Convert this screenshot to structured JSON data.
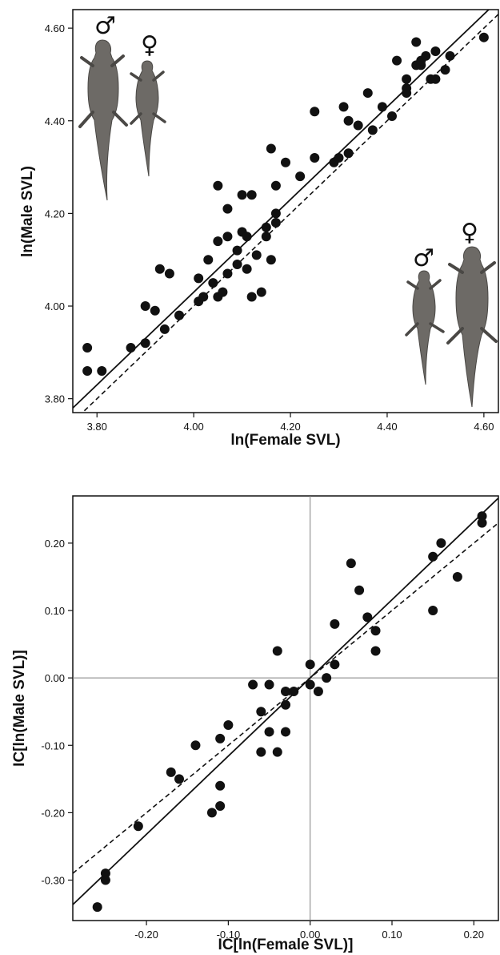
{
  "colors": {
    "ink": "#111111",
    "lizard": "#6d6a66",
    "lizard_dark": "#4a4845",
    "refline": "#7f7f7f"
  },
  "icons": {
    "male": "♂",
    "female": "♀"
  },
  "chart_data": [
    {
      "type": "scatter",
      "xlabel": "ln(Female SVL)",
      "ylabel": "ln(Male SVL)",
      "xlim": [
        3.75,
        4.63
      ],
      "ylim": [
        3.77,
        4.64
      ],
      "xticks": [
        3.8,
        4.0,
        4.2,
        4.4,
        4.6
      ],
      "yticks": [
        3.8,
        4.0,
        4.2,
        4.4,
        4.6
      ],
      "tick_labels_x": [
        "3.80",
        "4.00",
        "4.20",
        "4.40",
        "4.60"
      ],
      "tick_labels_y": [
        "3.80",
        "4.00",
        "4.20",
        "4.40",
        "4.60"
      ],
      "grid": false,
      "points": [
        [
          3.78,
          3.91
        ],
        [
          3.78,
          3.86
        ],
        [
          3.81,
          3.86
        ],
        [
          3.87,
          3.91
        ],
        [
          3.9,
          3.92
        ],
        [
          3.9,
          4.0
        ],
        [
          3.92,
          3.99
        ],
        [
          3.93,
          4.08
        ],
        [
          3.94,
          3.95
        ],
        [
          3.95,
          4.07
        ],
        [
          3.97,
          3.98
        ],
        [
          4.01,
          4.06
        ],
        [
          4.01,
          4.01
        ],
        [
          4.02,
          4.02
        ],
        [
          4.03,
          4.1
        ],
        [
          4.04,
          4.05
        ],
        [
          4.05,
          4.02
        ],
        [
          4.05,
          4.14
        ],
        [
          4.05,
          4.26
        ],
        [
          4.06,
          4.03
        ],
        [
          4.07,
          4.21
        ],
        [
          4.07,
          4.07
        ],
        [
          4.07,
          4.15
        ],
        [
          4.09,
          4.12
        ],
        [
          4.09,
          4.09
        ],
        [
          4.1,
          4.16
        ],
        [
          4.1,
          4.24
        ],
        [
          4.11,
          4.15
        ],
        [
          4.11,
          4.08
        ],
        [
          4.12,
          4.24
        ],
        [
          4.12,
          4.02
        ],
        [
          4.13,
          4.11
        ],
        [
          4.14,
          4.03
        ],
        [
          4.15,
          4.17
        ],
        [
          4.15,
          4.15
        ],
        [
          4.16,
          4.1
        ],
        [
          4.16,
          4.34
        ],
        [
          4.17,
          4.18
        ],
        [
          4.17,
          4.2
        ],
        [
          4.17,
          4.26
        ],
        [
          4.19,
          4.31
        ],
        [
          4.22,
          4.28
        ],
        [
          4.25,
          4.32
        ],
        [
          4.25,
          4.42
        ],
        [
          4.29,
          4.31
        ],
        [
          4.3,
          4.32
        ],
        [
          4.31,
          4.43
        ],
        [
          4.32,
          4.4
        ],
        [
          4.32,
          4.33
        ],
        [
          4.34,
          4.39
        ],
        [
          4.36,
          4.46
        ],
        [
          4.37,
          4.38
        ],
        [
          4.39,
          4.43
        ],
        [
          4.41,
          4.41
        ],
        [
          4.42,
          4.53
        ],
        [
          4.44,
          4.46
        ],
        [
          4.44,
          4.47
        ],
        [
          4.44,
          4.49
        ],
        [
          4.46,
          4.52
        ],
        [
          4.46,
          4.57
        ],
        [
          4.47,
          4.52
        ],
        [
          4.47,
          4.53
        ],
        [
          4.48,
          4.54
        ],
        [
          4.49,
          4.49
        ],
        [
          4.5,
          4.49
        ],
        [
          4.5,
          4.55
        ],
        [
          4.52,
          4.51
        ],
        [
          4.53,
          4.54
        ],
        [
          4.6,
          4.58
        ]
      ],
      "solid_line": {
        "slope": 1.0,
        "intercept": 0.03
      },
      "dashed_line": {
        "slope": 1.0,
        "intercept": 0.0
      },
      "annotations": [
        "♂",
        "♀",
        "♂",
        "♀"
      ]
    },
    {
      "type": "scatter",
      "xlabel": "IC[ln(Female SVL)]",
      "ylabel": "IC[ln(Male SVL)]",
      "xlim": [
        -0.29,
        0.23
      ],
      "ylim": [
        -0.36,
        0.27
      ],
      "xticks": [
        -0.2,
        -0.1,
        0.0,
        0.1,
        0.2
      ],
      "yticks": [
        -0.3,
        -0.2,
        -0.1,
        0.0,
        0.1,
        0.2
      ],
      "tick_labels_x": [
        "-0.20",
        "-0.10",
        "0.00",
        "0.10",
        "0.20"
      ],
      "tick_labels_y": [
        "-0.30",
        "-0.20",
        "-0.10",
        "0.00",
        "0.10",
        "0.20"
      ],
      "grid": false,
      "reference_lines": {
        "x": 0.0,
        "y": 0.0
      },
      "points": [
        [
          -0.26,
          -0.34
        ],
        [
          -0.25,
          -0.29
        ],
        [
          -0.25,
          -0.3
        ],
        [
          -0.21,
          -0.22
        ],
        [
          -0.17,
          -0.14
        ],
        [
          -0.16,
          -0.15
        ],
        [
          -0.14,
          -0.1
        ],
        [
          -0.12,
          -0.2
        ],
        [
          -0.11,
          -0.19
        ],
        [
          -0.11,
          -0.16
        ],
        [
          -0.11,
          -0.09
        ],
        [
          -0.1,
          -0.07
        ],
        [
          -0.07,
          -0.01
        ],
        [
          -0.06,
          -0.05
        ],
        [
          -0.06,
          -0.11
        ],
        [
          -0.05,
          -0.01
        ],
        [
          -0.05,
          -0.08
        ],
        [
          -0.04,
          0.04
        ],
        [
          -0.04,
          -0.11
        ],
        [
          -0.03,
          -0.02
        ],
        [
          -0.03,
          -0.04
        ],
        [
          -0.03,
          -0.08
        ],
        [
          -0.02,
          -0.02
        ],
        [
          0.0,
          0.02
        ],
        [
          0.0,
          -0.01
        ],
        [
          0.01,
          -0.02
        ],
        [
          0.02,
          0.0
        ],
        [
          0.03,
          0.02
        ],
        [
          0.03,
          0.08
        ],
        [
          0.05,
          0.17
        ],
        [
          0.06,
          0.13
        ],
        [
          0.07,
          0.09
        ],
        [
          0.08,
          0.07
        ],
        [
          0.08,
          0.04
        ],
        [
          0.15,
          0.18
        ],
        [
          0.15,
          0.1
        ],
        [
          0.16,
          0.2
        ],
        [
          0.18,
          0.15
        ],
        [
          0.21,
          0.24
        ],
        [
          0.21,
          0.23
        ]
      ],
      "solid_line": {
        "slope": 1.16,
        "intercept": 0.0
      },
      "dashed_line": {
        "slope": 1.0,
        "intercept": 0.0
      }
    }
  ]
}
